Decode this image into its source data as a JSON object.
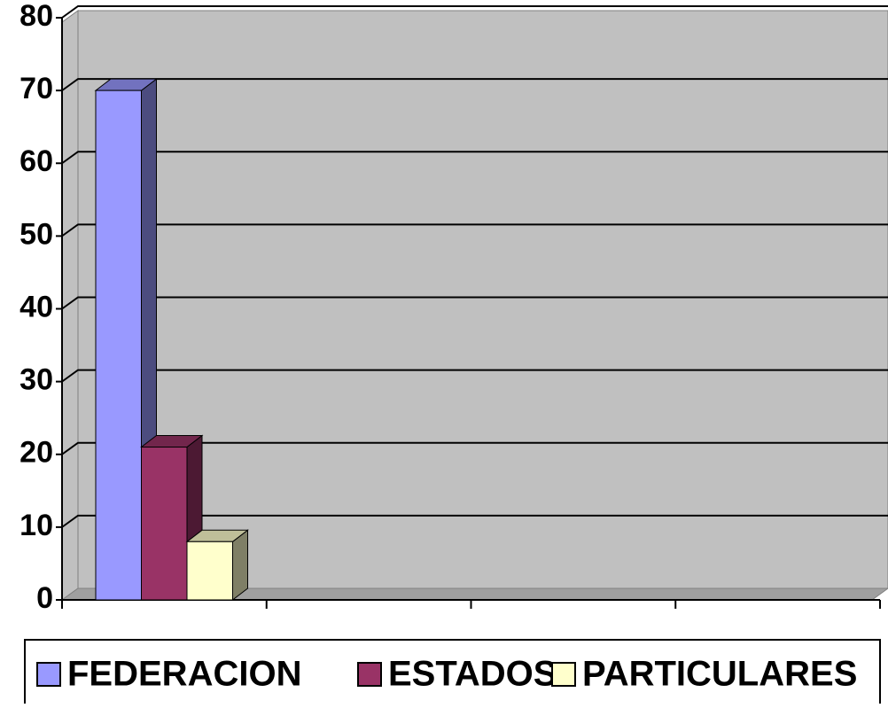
{
  "chart_data": {
    "type": "bar3d",
    "categories": [
      null,
      null,
      null,
      null
    ],
    "series": [
      {
        "name": "FEDERACION",
        "color": "#9999ff",
        "values": [
          70,
          null,
          null,
          null
        ]
      },
      {
        "name": "ESTADOS",
        "color": "#993366",
        "values": [
          21,
          null,
          null,
          null
        ]
      },
      {
        "name": "PARTICULARES",
        "color": "#ffffcc",
        "values": [
          8,
          null,
          null,
          null
        ]
      }
    ],
    "ylim": [
      0,
      80
    ],
    "yticks": [
      0,
      10,
      20,
      30,
      40,
      50,
      60,
      70,
      80
    ],
    "grid": true,
    "legend": "bottom"
  }
}
